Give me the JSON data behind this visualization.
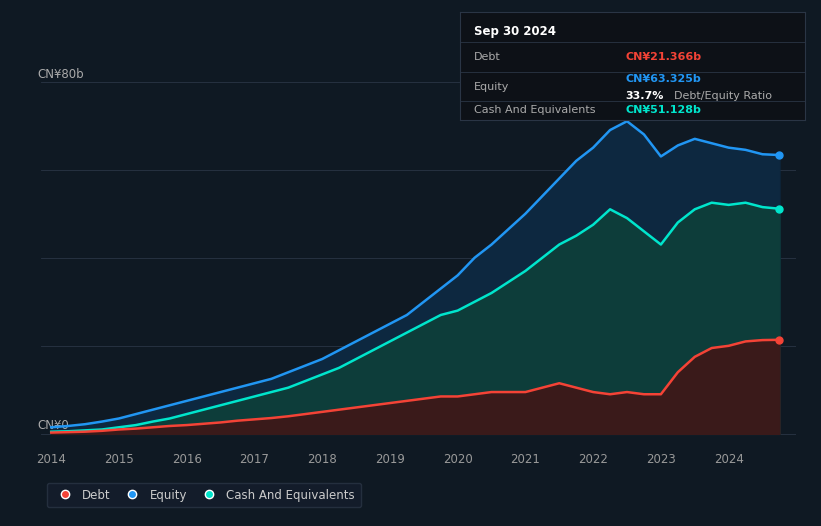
{
  "background_color": "#0f1923",
  "plot_bg_color": "#0f1923",
  "equity_color": "#2196f3",
  "debt_color": "#f44336",
  "cash_color": "#00e5cc",
  "equity_fill": "#0d2840",
  "cash_fill": "#0d3d3a",
  "debt_fill": "#3a1a1a",
  "legend_bg": "#151e2d",
  "x_ticks": [
    2014,
    2015,
    2016,
    2017,
    2018,
    2019,
    2020,
    2021,
    2022,
    2023,
    2024
  ],
  "years": [
    2014.0,
    2014.25,
    2014.5,
    2014.75,
    2015.0,
    2015.25,
    2015.5,
    2015.75,
    2016.0,
    2016.25,
    2016.5,
    2016.75,
    2017.0,
    2017.25,
    2017.5,
    2017.75,
    2018.0,
    2018.25,
    2018.5,
    2018.75,
    2019.0,
    2019.25,
    2019.5,
    2019.75,
    2020.0,
    2020.25,
    2020.5,
    2020.75,
    2021.0,
    2021.25,
    2021.5,
    2021.75,
    2022.0,
    2022.25,
    2022.5,
    2022.75,
    2023.0,
    2023.25,
    2023.5,
    2023.75,
    2024.0,
    2024.25,
    2024.5,
    2024.75
  ],
  "equity": [
    1.5,
    1.8,
    2.2,
    2.8,
    3.5,
    4.5,
    5.5,
    6.5,
    7.5,
    8.5,
    9.5,
    10.5,
    11.5,
    12.5,
    14.0,
    15.5,
    17.0,
    19.0,
    21.0,
    23.0,
    25.0,
    27.0,
    30.0,
    33.0,
    36.0,
    40.0,
    43.0,
    46.5,
    50.0,
    54.0,
    58.0,
    62.0,
    65.0,
    69.0,
    71.0,
    68.0,
    63.0,
    65.5,
    67.0,
    66.0,
    65.0,
    64.5,
    63.5,
    63.325
  ],
  "cash": [
    0.5,
    0.6,
    0.8,
    1.0,
    1.5,
    2.0,
    2.8,
    3.5,
    4.5,
    5.5,
    6.5,
    7.5,
    8.5,
    9.5,
    10.5,
    12.0,
    13.5,
    15.0,
    17.0,
    19.0,
    21.0,
    23.0,
    25.0,
    27.0,
    28.0,
    30.0,
    32.0,
    34.5,
    37.0,
    40.0,
    43.0,
    45.0,
    47.5,
    51.0,
    49.0,
    46.0,
    43.0,
    48.0,
    51.0,
    52.5,
    52.0,
    52.5,
    51.5,
    51.128
  ],
  "debt": [
    0.3,
    0.4,
    0.5,
    0.7,
    1.0,
    1.2,
    1.5,
    1.8,
    2.0,
    2.3,
    2.6,
    3.0,
    3.3,
    3.6,
    4.0,
    4.5,
    5.0,
    5.5,
    6.0,
    6.5,
    7.0,
    7.5,
    8.0,
    8.5,
    8.5,
    9.0,
    9.5,
    9.5,
    9.5,
    10.5,
    11.5,
    10.5,
    9.5,
    9.0,
    9.5,
    9.0,
    9.0,
    14.0,
    17.5,
    19.5,
    20.0,
    21.0,
    21.3,
    21.366
  ],
  "info": {
    "date": "Sep 30 2024",
    "debt_label": "Debt",
    "debt_value": "CN¥21.366b",
    "equity_label": "Equity",
    "equity_value": "CN¥63.325b",
    "ratio": "33.7%",
    "ratio_label": "Debt/Equity Ratio",
    "cash_label": "Cash And Equivalents",
    "cash_value": "CN¥51.128b"
  }
}
